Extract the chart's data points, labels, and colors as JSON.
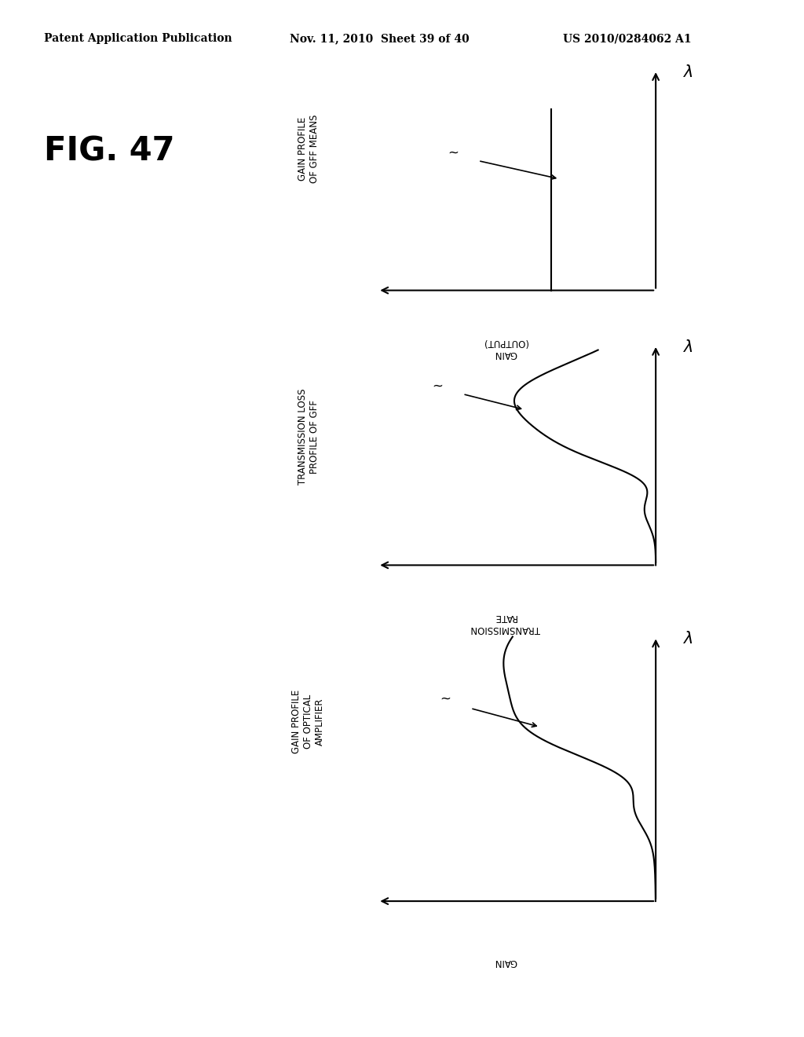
{
  "header_left": "Patent Application Publication",
  "header_mid": "Nov. 11, 2010  Sheet 39 of 40",
  "header_right": "US 2010/0284062 A1",
  "fig_label": "FIG. 47",
  "bg_color": "#ffffff",
  "panels": [
    {
      "type": "spike",
      "side_label": "GAIN PROFILE\nOF GFF MEANS",
      "xlabel_updown": "GAIN\n(OUTPUT)",
      "ylabel": "λ"
    },
    {
      "type": "wavy",
      "side_label": "TRANSMISSION LOSS\nPROFILE OF GFF",
      "xlabel_updown": "TRANSMISSION\nRATE",
      "ylabel": "λ"
    },
    {
      "type": "hump",
      "side_label": "GAIN PROFILE\nOF OPTICAL\nAMPLIFIER",
      "xlabel_updown": "GAIN",
      "ylabel": "λ"
    }
  ]
}
